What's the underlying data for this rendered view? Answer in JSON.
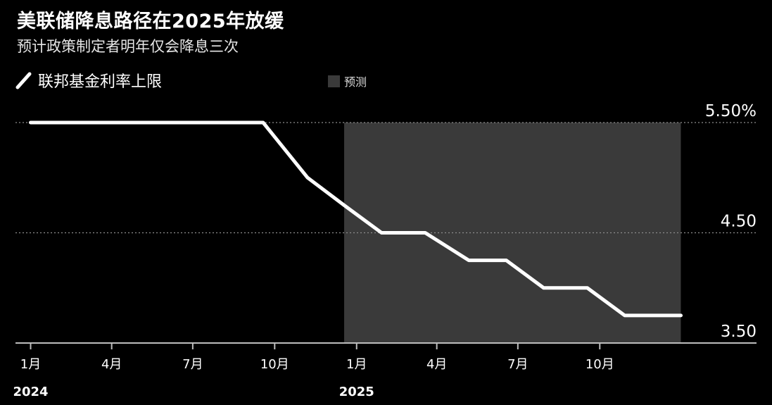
{
  "header": {
    "title": "美联储降息路径在2025年放缓",
    "subtitle": "预计政策制定者明年仅会降息三次"
  },
  "legend": {
    "series_label": "联邦基金利率上限",
    "forecast_label": "预测"
  },
  "colors": {
    "background": "#000000",
    "line": "#ffffff",
    "forecast_band": "#3a3a3a",
    "grid": "#8c8c8c",
    "axis": "#bdbdbd",
    "text": "#ffffff"
  },
  "chart_data": {
    "type": "line",
    "title": "美联储降息路径在2025年放缓",
    "subtitle": "预计政策制定者明年仅会降息三次",
    "series": [
      {
        "name": "联邦基金利率上限",
        "points": [
          {
            "x": "2024-01-01",
            "y": 5.5
          },
          {
            "x": "2024-09-18",
            "y": 5.5
          },
          {
            "x": "2024-11-07",
            "y": 5.0
          },
          {
            "x": "2024-12-18",
            "y": 4.75
          },
          {
            "x": "2025-01-29",
            "y": 4.5
          },
          {
            "x": "2025-03-19",
            "y": 4.5
          },
          {
            "x": "2025-05-07",
            "y": 4.25
          },
          {
            "x": "2025-06-18",
            "y": 4.25
          },
          {
            "x": "2025-07-30",
            "y": 4.0
          },
          {
            "x": "2025-09-17",
            "y": 4.0
          },
          {
            "x": "2025-10-29",
            "y": 3.75
          },
          {
            "x": "2025-12-31",
            "y": 3.75
          }
        ]
      }
    ],
    "forecast_region": {
      "start": "2024-12-18",
      "end": "2025-12-31",
      "label": "预测"
    },
    "ylim": [
      3.5,
      5.5
    ],
    "xlim": [
      "2023-12-15",
      "2026-01-02"
    ],
    "y_ticks": [
      {
        "value": 5.5,
        "label": "5.50%"
      },
      {
        "value": 4.5,
        "label": "4.50"
      },
      {
        "value": 3.5,
        "label": "3.50"
      }
    ],
    "x_ticks": [
      {
        "date": "2024-01-01",
        "label": "1月",
        "year": "2024"
      },
      {
        "date": "2024-04-01",
        "label": "4月"
      },
      {
        "date": "2024-07-01",
        "label": "7月"
      },
      {
        "date": "2024-10-01",
        "label": "10月"
      },
      {
        "date": "2025-01-01",
        "label": "1月",
        "year": "2025"
      },
      {
        "date": "2025-04-01",
        "label": "4月"
      },
      {
        "date": "2025-07-01",
        "label": "7月"
      },
      {
        "date": "2025-10-01",
        "label": "10月"
      }
    ],
    "grid": true,
    "legend_position": "top-left"
  }
}
